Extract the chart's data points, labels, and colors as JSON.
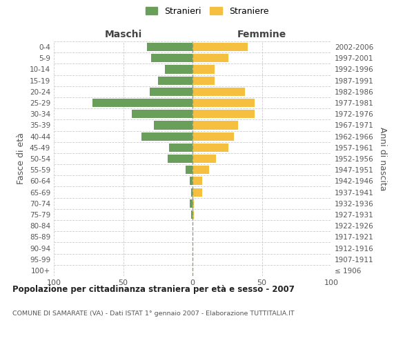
{
  "age_groups": [
    "100+",
    "95-99",
    "90-94",
    "85-89",
    "80-84",
    "75-79",
    "70-74",
    "65-69",
    "60-64",
    "55-59",
    "50-54",
    "45-49",
    "40-44",
    "35-39",
    "30-34",
    "25-29",
    "20-24",
    "15-19",
    "10-14",
    "5-9",
    "0-4"
  ],
  "birth_years": [
    "≤ 1906",
    "1907-1911",
    "1912-1916",
    "1917-1921",
    "1922-1926",
    "1927-1931",
    "1932-1936",
    "1937-1941",
    "1942-1946",
    "1947-1951",
    "1952-1956",
    "1957-1961",
    "1962-1966",
    "1967-1971",
    "1972-1976",
    "1977-1981",
    "1982-1986",
    "1987-1991",
    "1992-1996",
    "1997-2001",
    "2002-2006"
  ],
  "maschi": [
    0,
    0,
    0,
    0,
    0,
    1,
    2,
    1,
    2,
    5,
    18,
    17,
    37,
    28,
    44,
    72,
    31,
    25,
    20,
    30,
    33
  ],
  "femmine": [
    0,
    0,
    0,
    0,
    0,
    1,
    1,
    7,
    7,
    12,
    17,
    26,
    30,
    33,
    45,
    45,
    38,
    16,
    16,
    26,
    40
  ],
  "maschi_color": "#6a9f5b",
  "femmine_color": "#f5c040",
  "title": "Popolazione per cittadinanza straniera per età e sesso - 2007",
  "subtitle": "COMUNE DI SAMARATE (VA) - Dati ISTAT 1° gennaio 2007 - Elaborazione TUTTITALIA.IT",
  "ylabel_left": "Fasce di età",
  "ylabel_right": "Anni di nascita",
  "label_maschi": "Maschi",
  "label_femmine": "Femmine",
  "legend_maschi": "Stranieri",
  "legend_femmine": "Straniere",
  "xlim": 100,
  "background_color": "#ffffff",
  "grid_color": "#cccccc"
}
